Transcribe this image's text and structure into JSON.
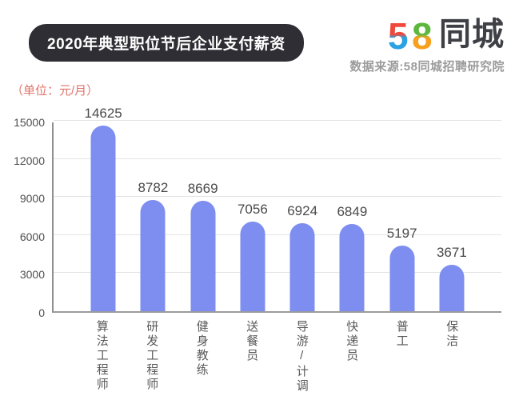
{
  "header": {
    "title": "2020年典型职位节后企业支付薪资",
    "unit_label": "（单位：元/月）",
    "logo": {
      "digit_5": "5",
      "digit_8": "8",
      "wordmark": "同城"
    },
    "source": "数据来源:58同城招聘研究院"
  },
  "colors": {
    "badge_bg": "#2e2e34",
    "badge_text": "#ffffff",
    "unit_label_red": "#e0736b",
    "bar": "#7d8df0",
    "gridline": "#e3e3e3",
    "axis": "#979797",
    "tick_label": "#4f4f4f",
    "value_label": "#4a4a4a",
    "category_label": "#5a5a5a",
    "source_text": "#9b9b9b",
    "logo_5_top": "#f0493c",
    "logo_5_bottom": "#2ba2e2",
    "logo_8_top": "#5cb83c",
    "logo_8_bottom": "#f7a01e",
    "logo_wordmark": "#3f4045"
  },
  "chart_data": {
    "type": "bar",
    "title": "2020年典型职位节后企业支付薪资",
    "unit": "元/月",
    "categories": [
      "算法工程师",
      "研发工程师",
      "健身教练",
      "送餐员",
      "导游/计调",
      "快递员",
      "普工",
      "保洁"
    ],
    "values": [
      14625,
      8782,
      8669,
      7056,
      6924,
      6849,
      5197,
      3671
    ],
    "ylim": [
      0,
      15000
    ],
    "yticks": [
      0,
      3000,
      6000,
      9000,
      12000,
      15000
    ],
    "grid": true,
    "legend": false,
    "bar_color": "#7d8df0"
  }
}
